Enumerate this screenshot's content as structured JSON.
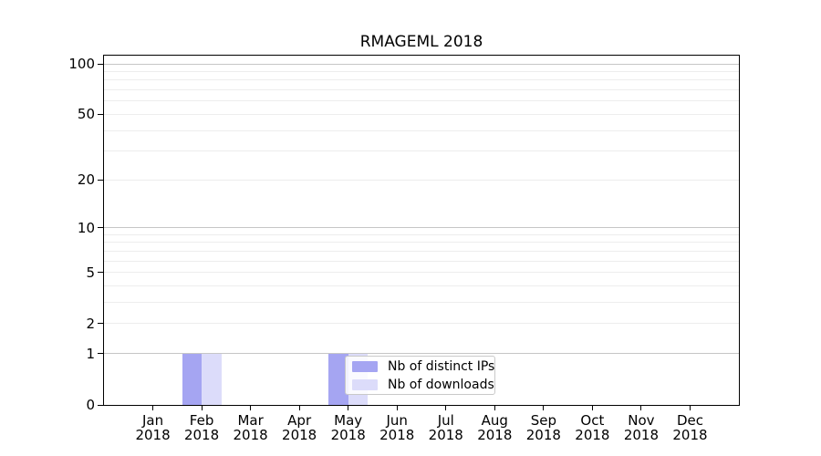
{
  "chart_data": {
    "type": "bar",
    "title": "RMAGEML 2018",
    "x": {
      "categories": [
        "Jan",
        "Feb",
        "Mar",
        "Apr",
        "May",
        "Jun",
        "Jul",
        "Aug",
        "Sep",
        "Oct",
        "Nov",
        "Dec"
      ],
      "year_label": "2018"
    },
    "y": {
      "scale": "log1p",
      "ylim": [
        0,
        100
      ],
      "ticks": [
        0,
        1,
        2,
        5,
        10,
        20,
        50,
        100
      ],
      "grid_minor": [
        2,
        3,
        4,
        5,
        6,
        7,
        8,
        9,
        20,
        30,
        40,
        50,
        60,
        70,
        80,
        90
      ],
      "grid_major": [
        1,
        10,
        100
      ],
      "grid_on": true
    },
    "series": [
      {
        "name": "Nb of distinct IPs",
        "color": "#a5a5f2",
        "values": [
          0,
          1,
          0,
          0,
          1,
          0,
          0,
          0,
          0,
          0,
          0,
          0
        ]
      },
      {
        "name": "Nb of downloads",
        "color": "#dcdcfa",
        "values": [
          0,
          1,
          0,
          0,
          1,
          0,
          0,
          0,
          0,
          0,
          0,
          0
        ]
      }
    ],
    "legend": {
      "position": "inside-bottom-left-of-center",
      "entries": [
        "Nb of distinct IPs",
        "Nb of downloads"
      ]
    },
    "colors": {
      "axis": "#000000",
      "grid_minor": "#ededed",
      "grid_major": "#c6c6c6",
      "background": "#ffffff"
    }
  }
}
